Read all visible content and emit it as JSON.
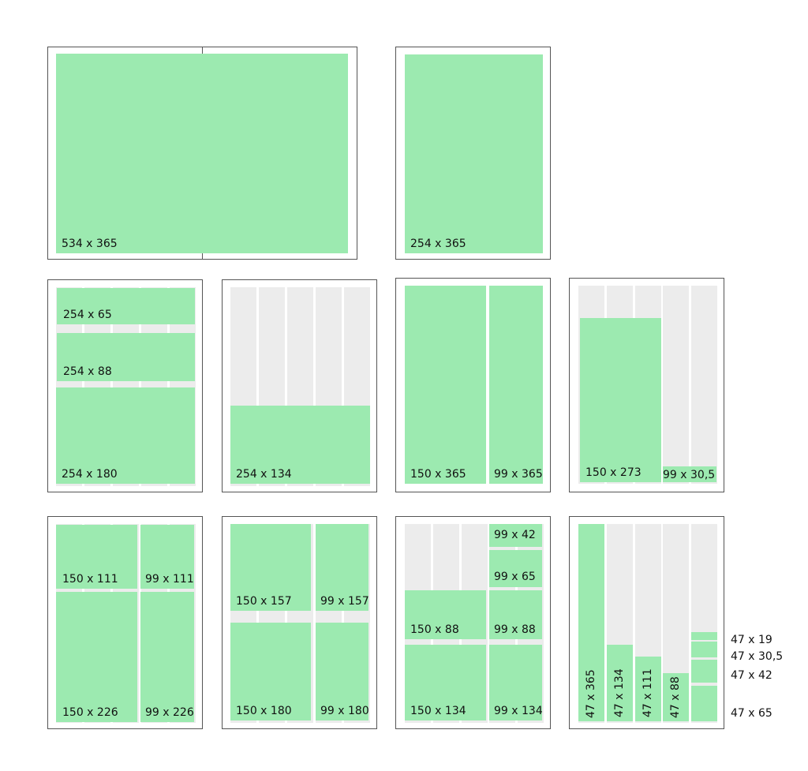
{
  "panels": [
    {
      "blocks": [
        {
          "label": "534 x 365"
        }
      ]
    },
    {
      "blocks": [
        {
          "label": "254 x 365"
        }
      ]
    },
    {
      "blocks": [
        {
          "label": "254 x 65"
        },
        {
          "label": "254 x 88"
        },
        {
          "label": "254 x 180"
        }
      ]
    },
    {
      "blocks": [
        {
          "label": "254 x 134"
        }
      ]
    },
    {
      "blocks": [
        {
          "label": "150 x 365"
        },
        {
          "label": "99 x 365"
        }
      ]
    },
    {
      "blocks": [
        {
          "label": "150 x 273"
        },
        {
          "label": "99 x 30,5"
        }
      ]
    },
    {
      "blocks": [
        {
          "label": "150 x 111"
        },
        {
          "label": "99 x 111"
        },
        {
          "label": "150 x 226"
        },
        {
          "label": "99 x 226"
        }
      ]
    },
    {
      "blocks": [
        {
          "label": "150 x 157"
        },
        {
          "label": "99 x 157"
        },
        {
          "label": "150 x 180"
        },
        {
          "label": "99 x 180"
        }
      ]
    },
    {
      "blocks": [
        {
          "label": "99 x 42"
        },
        {
          "label": "99 x 65"
        },
        {
          "label": "150 x 88"
        },
        {
          "label": "99 x 88"
        },
        {
          "label": "150 x 134"
        },
        {
          "label": "99 x 134"
        }
      ]
    },
    {
      "blocks": [
        {
          "label": "47 x 365"
        },
        {
          "label": "47 x 134"
        },
        {
          "label": "47 x 111"
        },
        {
          "label": "47 x 88"
        }
      ],
      "side_labels": [
        {
          "label": "47 x 19"
        },
        {
          "label": "47 x 30,5"
        },
        {
          "label": "47 x 42"
        },
        {
          "label": "47 x 65"
        }
      ]
    }
  ]
}
